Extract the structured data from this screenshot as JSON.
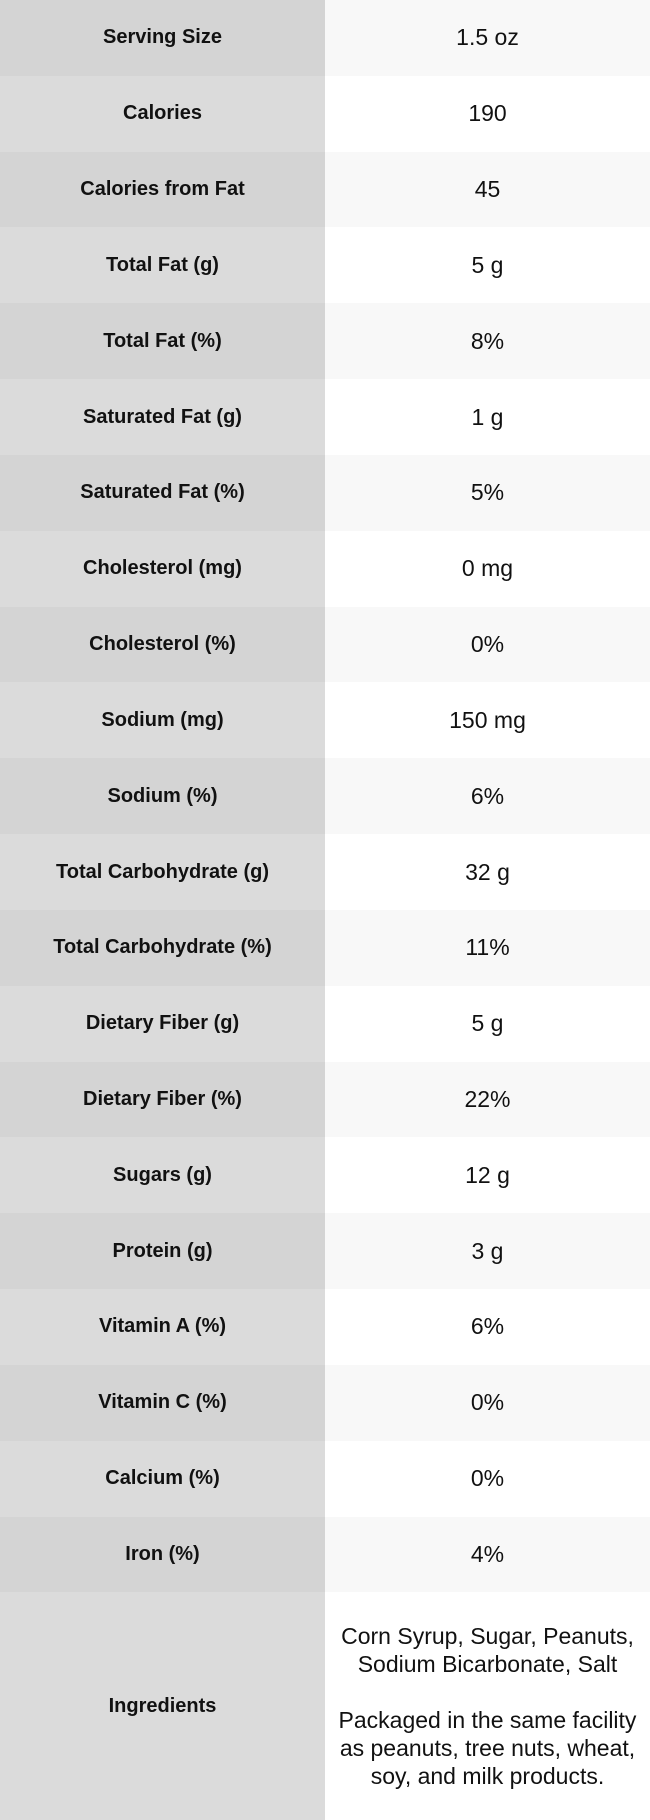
{
  "chart_data": {
    "type": "table",
    "rows": [
      {
        "label": "Serving Size",
        "value": "1.5 oz"
      },
      {
        "label": "Calories",
        "value": "190"
      },
      {
        "label": "Calories from Fat",
        "value": "45"
      },
      {
        "label": "Total Fat (g)",
        "value": "5 g"
      },
      {
        "label": "Total Fat (%)",
        "value": "8%"
      },
      {
        "label": "Saturated Fat (g)",
        "value": "1 g"
      },
      {
        "label": "Saturated Fat (%)",
        "value": "5%"
      },
      {
        "label": "Cholesterol (mg)",
        "value": "0 mg"
      },
      {
        "label": "Cholesterol (%)",
        "value": "0%"
      },
      {
        "label": "Sodium (mg)",
        "value": "150 mg"
      },
      {
        "label": "Sodium (%)",
        "value": "6%"
      },
      {
        "label": "Total Carbohydrate (g)",
        "value": "32 g"
      },
      {
        "label": "Total Carbohydrate (%)",
        "value": "11%"
      },
      {
        "label": "Dietary Fiber (g)",
        "value": "5 g"
      },
      {
        "label": "Dietary Fiber (%)",
        "value": "22%"
      },
      {
        "label": "Sugars (g)",
        "value": "12 g"
      },
      {
        "label": "Protein (g)",
        "value": "3 g"
      },
      {
        "label": "Vitamin A (%)",
        "value": "6%"
      },
      {
        "label": "Vitamin C (%)",
        "value": "0%"
      },
      {
        "label": "Calcium (%)",
        "value": "0%"
      },
      {
        "label": "Iron (%)",
        "value": "4%"
      }
    ],
    "ingredients": {
      "label": "Ingredients",
      "ingredients_list": "Corn Syrup, Sugar, Peanuts, Sodium Bicarbonate, Salt",
      "allergen_note": "Packaged in the same facility as peanuts, tree nuts, wheat, soy, and milk products."
    }
  },
  "colors": {
    "label_col_dark": "#d4d4d4",
    "label_col_light": "#dbdbdb",
    "value_col_shaded": "#f8f8f8",
    "value_col_white": "#ffffff",
    "text": "#111111"
  }
}
